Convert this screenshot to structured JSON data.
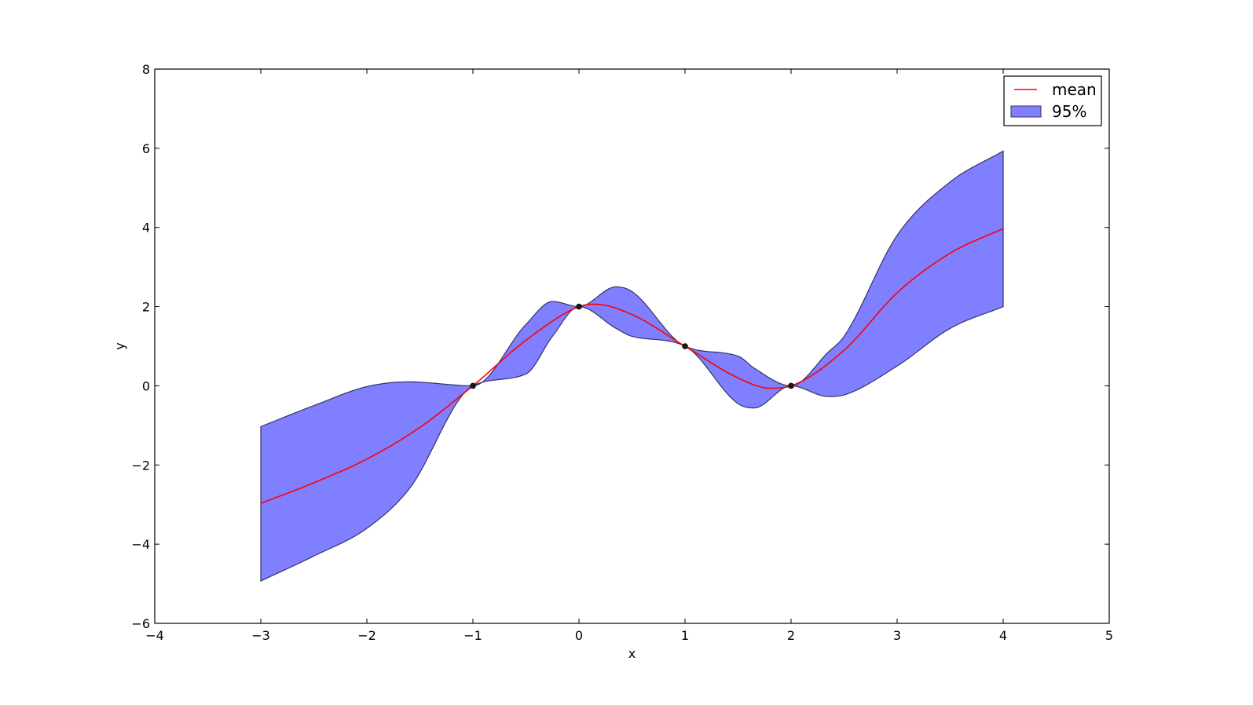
{
  "chart_data": {
    "type": "line",
    "title": "",
    "xlabel": "x",
    "ylabel": "y",
    "xlim": [
      -4,
      5
    ],
    "ylim": [
      -6,
      8
    ],
    "xticks": [
      -4,
      -3,
      -2,
      -1,
      0,
      1,
      2,
      3,
      4,
      5
    ],
    "yticks": [
      -6,
      -4,
      -2,
      0,
      2,
      4,
      6,
      8
    ],
    "xtick_labels": [
      "−4",
      "−3",
      "−2",
      "−1",
      "0",
      "1",
      "2",
      "3",
      "4",
      "5"
    ],
    "ytick_labels": [
      "−6",
      "−4",
      "−2",
      "0",
      "2",
      "4",
      "6",
      "8"
    ],
    "grid": false,
    "legend_position": "top-right",
    "series": [
      {
        "name": "mean",
        "kind": "line",
        "color": "#ff0000",
        "x": [
          -3.0,
          -2.5,
          -2.0,
          -1.5,
          -1.0,
          -0.5,
          0.0,
          0.15,
          0.5,
          1.0,
          1.5,
          1.8,
          2.0,
          2.5,
          3.0,
          3.5,
          4.0
        ],
        "y": [
          -2.97,
          -2.45,
          -1.85,
          -1.05,
          0.0,
          1.15,
          2.0,
          2.06,
          1.8,
          1.0,
          0.2,
          -0.06,
          0.0,
          0.9,
          2.35,
          3.35,
          3.97
        ]
      },
      {
        "name": "95%",
        "kind": "band",
        "color": "#0000ff",
        "opacity": 0.5,
        "edge_color": "#333366",
        "x": [
          -3.0,
          -2.5,
          -2.0,
          -1.6,
          -1.0,
          -0.5,
          -0.25,
          0.0,
          0.35,
          0.5,
          1.0,
          1.5,
          1.65,
          2.0,
          2.35,
          2.5,
          3.0,
          3.5,
          4.0
        ],
        "upper": [
          -1.03,
          -0.5,
          -0.02,
          0.1,
          0.0,
          1.55,
          2.13,
          2.0,
          2.5,
          2.38,
          1.0,
          0.75,
          0.45,
          0.0,
          0.85,
          1.25,
          3.8,
          5.15,
          5.93
        ],
        "lower": [
          -4.93,
          -4.3,
          -3.6,
          -2.6,
          0.0,
          0.3,
          1.25,
          2.0,
          1.45,
          1.25,
          1.0,
          -0.45,
          -0.56,
          0.0,
          -0.27,
          -0.23,
          0.5,
          1.45,
          2.0
        ]
      }
    ],
    "observations": {
      "color": "#1a1a1a",
      "x": [
        -1,
        0,
        1,
        2
      ],
      "y": [
        0,
        2,
        1,
        0
      ]
    }
  }
}
